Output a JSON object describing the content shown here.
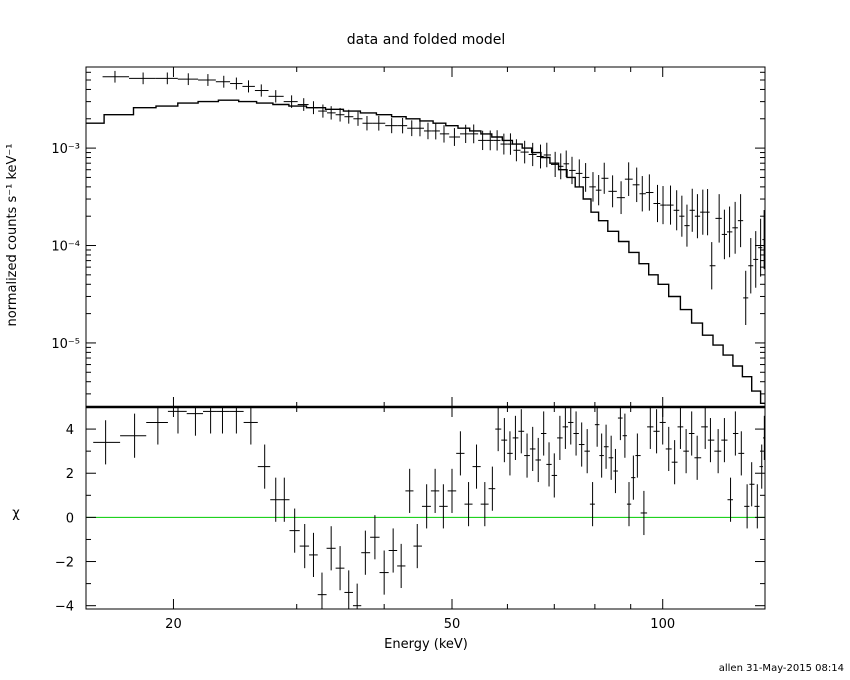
{
  "footer": "allen 31-May-2015 08:14",
  "chart_data": [
    {
      "type": "line",
      "title": "data and folded model",
      "xlabel": "",
      "ylabel": "normalized counts s⁻¹ keV⁻¹",
      "xscale": "log",
      "yscale": "log",
      "xlim": [
        15,
        140
      ],
      "ylim": [
        2.2e-06,
        0.0068
      ],
      "yticks": [
        {
          "value": 0.001,
          "label": "10⁻³"
        },
        {
          "value": 0.0001,
          "label": "10⁻⁴"
        },
        {
          "value": 1e-05,
          "label": "10⁻⁵"
        }
      ],
      "series": [
        {
          "kind": "data",
          "points": [
            [
              16.5,
              0.0054
            ],
            [
              18.1,
              0.0052
            ],
            [
              19.6,
              0.0052
            ],
            [
              21.0,
              0.0051
            ],
            [
              22.4,
              0.005
            ],
            [
              23.6,
              0.0048
            ],
            [
              24.6,
              0.0046
            ],
            [
              25.6,
              0.0043
            ],
            [
              26.7,
              0.0039
            ],
            [
              28.0,
              0.0034
            ],
            [
              29.5,
              0.003
            ],
            [
              30.7,
              0.0028
            ],
            [
              31.7,
              0.0026
            ],
            [
              32.7,
              0.0024
            ],
            [
              33.6,
              0.0023
            ],
            [
              34.6,
              0.0022
            ],
            [
              35.6,
              0.0021
            ],
            [
              36.7,
              0.002
            ],
            [
              37.8,
              0.0018
            ],
            [
              39.3,
              0.0018
            ],
            [
              41.0,
              0.0017
            ],
            [
              42.5,
              0.0017
            ],
            [
              43.8,
              0.0016
            ],
            [
              45.0,
              0.0016
            ],
            [
              46.2,
              0.0015
            ],
            [
              47.4,
              0.0015
            ],
            [
              48.7,
              0.0014
            ],
            [
              50.4,
              0.0013
            ],
            [
              52.3,
              0.0014
            ],
            [
              53.7,
              0.0014
            ],
            [
              55.3,
              0.0012
            ],
            [
              56.7,
              0.0012
            ],
            [
              58.0,
              0.0012
            ],
            [
              59.3,
              0.0011
            ],
            [
              60.6,
              0.0011
            ],
            [
              61.8,
              0.00095
            ],
            [
              63.5,
              0.00091
            ],
            [
              65.2,
              0.00086
            ],
            [
              66.9,
              0.00082
            ],
            [
              68.3,
              0.00085
            ],
            [
              70.2,
              0.00068
            ],
            [
              71.5,
              0.00065
            ],
            [
              72.8,
              0.00069
            ],
            [
              74.2,
              0.00059
            ],
            [
              76.0,
              0.00055
            ],
            [
              77.6,
              0.0005
            ],
            [
              79.5,
              0.0004
            ],
            [
              81.0,
              0.00037
            ],
            [
              82.5,
              0.00049
            ],
            [
              84.8,
              0.00036
            ],
            [
              87.2,
              0.00031
            ],
            [
              89.4,
              0.00048
            ],
            [
              91.8,
              0.00042
            ],
            [
              93.5,
              0.00034
            ],
            [
              95.7,
              0.00035
            ],
            [
              98.3,
              0.00027
            ],
            [
              100.1,
              0.00026
            ],
            [
              102.6,
              0.00026
            ],
            [
              104.7,
              0.00023
            ],
            [
              106.5,
              0.0002
            ],
            [
              108.3,
              0.00016
            ],
            [
              110.2,
              0.00023
            ],
            [
              112.1,
              0.0002
            ],
            [
              114.1,
              0.00022
            ],
            [
              115.9,
              0.00022
            ],
            [
              117.5,
              6.2e-05
            ],
            [
              120.4,
              0.00019
            ],
            [
              122.5,
              0.00013
            ],
            [
              124.6,
              0.000138
            ],
            [
              126.9,
              0.000152
            ],
            [
              129.2,
              0.00018
            ],
            [
              131.4,
              2.9e-05
            ],
            [
              133.6,
              6.2e-05
            ],
            [
              135.8,
              7.2e-05
            ],
            [
              138.0,
              9.5e-05
            ],
            [
              139.6,
              0.000115
            ]
          ]
        },
        {
          "kind": "model",
          "points": [
            [
              15.0,
              0.0018
            ],
            [
              16.9,
              0.0022
            ],
            [
              18.2,
              0.0026
            ],
            [
              19.6,
              0.0027
            ],
            [
              21.0,
              0.0029
            ],
            [
              22.4,
              0.003
            ],
            [
              24.0,
              0.0031
            ],
            [
              25.6,
              0.003
            ],
            [
              27.0,
              0.0029
            ],
            [
              28.5,
              0.0028
            ],
            [
              30.0,
              0.0027
            ],
            [
              32.0,
              0.0026
            ],
            [
              34.0,
              0.0025
            ],
            [
              36.0,
              0.0024
            ],
            [
              38.0,
              0.0023
            ],
            [
              40.0,
              0.0022
            ],
            [
              42.0,
              0.0021
            ],
            [
              44.0,
              0.002
            ],
            [
              46.0,
              0.0019
            ],
            [
              48.0,
              0.0018
            ],
            [
              50.0,
              0.0017
            ],
            [
              52.0,
              0.0016
            ],
            [
              54.0,
              0.0015
            ],
            [
              56.0,
              0.0014
            ],
            [
              58.0,
              0.0013
            ],
            [
              60.0,
              0.0012
            ],
            [
              62.0,
              0.0011
            ],
            [
              64.0,
              0.001
            ],
            [
              66.0,
              0.0009
            ],
            [
              68.0,
              0.0008
            ],
            [
              70.0,
              0.0007
            ],
            [
              72.0,
              0.0006
            ],
            [
              74.0,
              0.0005
            ],
            [
              76.0,
              0.0004
            ],
            [
              78.0,
              0.0003
            ],
            [
              80.0,
              0.00022
            ],
            [
              82.0,
              0.00018
            ],
            [
              85.0,
              0.00014
            ],
            [
              88.0,
              0.00011
            ],
            [
              91.0,
              8.5e-05
            ],
            [
              94.0,
              6.5e-05
            ],
            [
              97.0,
              5e-05
            ],
            [
              100.0,
              4e-05
            ],
            [
              104.0,
              3e-05
            ],
            [
              108.0,
              2.2e-05
            ],
            [
              112.0,
              1.6e-05
            ],
            [
              116.0,
              1.2e-05
            ],
            [
              120.0,
              9.5e-06
            ],
            [
              124.0,
              7.5e-06
            ],
            [
              128.0,
              5.8e-06
            ],
            [
              132.0,
              4.5e-06
            ],
            [
              136.0,
              3.2e-06
            ],
            [
              140.0,
              2.4e-06
            ]
          ]
        }
      ]
    },
    {
      "type": "scatter",
      "title": "",
      "xlabel": "Energy (keV)",
      "ylabel": "χ",
      "xscale": "log",
      "xlim": [
        15,
        140
      ],
      "ylim": [
        -4.15,
        5.0
      ],
      "yticks": [
        4,
        2,
        0,
        -2,
        -4
      ],
      "xticks": [
        20,
        50,
        100
      ],
      "reference_line": {
        "y": 0,
        "color": "#00cc00"
      },
      "series": [
        {
          "kind": "residuals",
          "points": [
            [
              16.0,
              3.4
            ],
            [
              17.6,
              3.7
            ],
            [
              19.0,
              4.3
            ],
            [
              20.3,
              4.8
            ],
            [
              21.5,
              4.7
            ],
            [
              22.6,
              4.8
            ],
            [
              23.5,
              4.8
            ],
            [
              24.6,
              4.8
            ],
            [
              25.8,
              4.3
            ],
            [
              27.0,
              2.3
            ],
            [
              28.0,
              0.8
            ],
            [
              28.8,
              0.8
            ],
            [
              29.8,
              -0.6
            ],
            [
              30.8,
              -1.3
            ],
            [
              31.7,
              -1.7
            ],
            [
              32.6,
              -3.5
            ],
            [
              33.6,
              -1.4
            ],
            [
              34.6,
              -2.3
            ],
            [
              35.6,
              -3.4
            ],
            [
              36.6,
              -4.0
            ],
            [
              37.6,
              -1.6
            ],
            [
              38.8,
              -0.9
            ],
            [
              40.0,
              -2.5
            ],
            [
              41.2,
              -1.5
            ],
            [
              42.3,
              -2.2
            ],
            [
              43.5,
              1.2
            ],
            [
              44.6,
              -1.3
            ],
            [
              46.0,
              0.5
            ],
            [
              47.3,
              1.2
            ],
            [
              48.6,
              0.5
            ],
            [
              50.0,
              1.2
            ],
            [
              51.4,
              2.9
            ],
            [
              52.8,
              0.6
            ],
            [
              54.2,
              2.3
            ],
            [
              55.7,
              0.6
            ],
            [
              57.1,
              1.3
            ],
            [
              58.2,
              4.0
            ],
            [
              59.4,
              3.5
            ],
            [
              60.5,
              2.9
            ],
            [
              61.6,
              3.6
            ],
            [
              62.8,
              3.9
            ],
            [
              64.0,
              2.8
            ],
            [
              65.2,
              3.1
            ],
            [
              66.4,
              2.6
            ],
            [
              67.6,
              3.8
            ],
            [
              68.8,
              2.4
            ],
            [
              70.0,
              1.9
            ],
            [
              71.3,
              3.6
            ],
            [
              72.6,
              4.1
            ],
            [
              73.9,
              4.3
            ],
            [
              75.2,
              3.8
            ],
            [
              76.6,
              3.3
            ],
            [
              78.0,
              3.0
            ],
            [
              79.4,
              0.6
            ],
            [
              80.6,
              4.2
            ],
            [
              81.8,
              2.8
            ],
            [
              83.0,
              3.2
            ],
            [
              84.4,
              2.7
            ],
            [
              85.6,
              2.1
            ],
            [
              87.0,
              4.5
            ],
            [
              88.3,
              3.7
            ],
            [
              89.5,
              0.6
            ],
            [
              90.8,
              1.8
            ],
            [
              92.0,
              2.8
            ],
            [
              94.0,
              0.2
            ],
            [
              96.0,
              4.1
            ],
            [
              98.0,
              3.9
            ],
            [
              100.0,
              4.3
            ],
            [
              102.0,
              3.1
            ],
            [
              104.0,
              2.5
            ],
            [
              106.0,
              4.1
            ],
            [
              108.0,
              3.0
            ],
            [
              110.0,
              3.8
            ],
            [
              112.0,
              2.7
            ],
            [
              115.0,
              4.1
            ],
            [
              117.0,
              3.5
            ],
            [
              120.0,
              3.0
            ],
            [
              122.5,
              3.5
            ],
            [
              125.0,
              0.8
            ],
            [
              127.0,
              3.8
            ],
            [
              129.5,
              2.9
            ],
            [
              132.0,
              0.5
            ],
            [
              134.0,
              1.5
            ],
            [
              136.5,
              0.5
            ],
            [
              138.5,
              2.3
            ],
            [
              139.7,
              3.6
            ]
          ]
        }
      ]
    }
  ],
  "colors": {
    "axes": "#000000",
    "reference": "#00cc00",
    "background": "#ffffff"
  }
}
